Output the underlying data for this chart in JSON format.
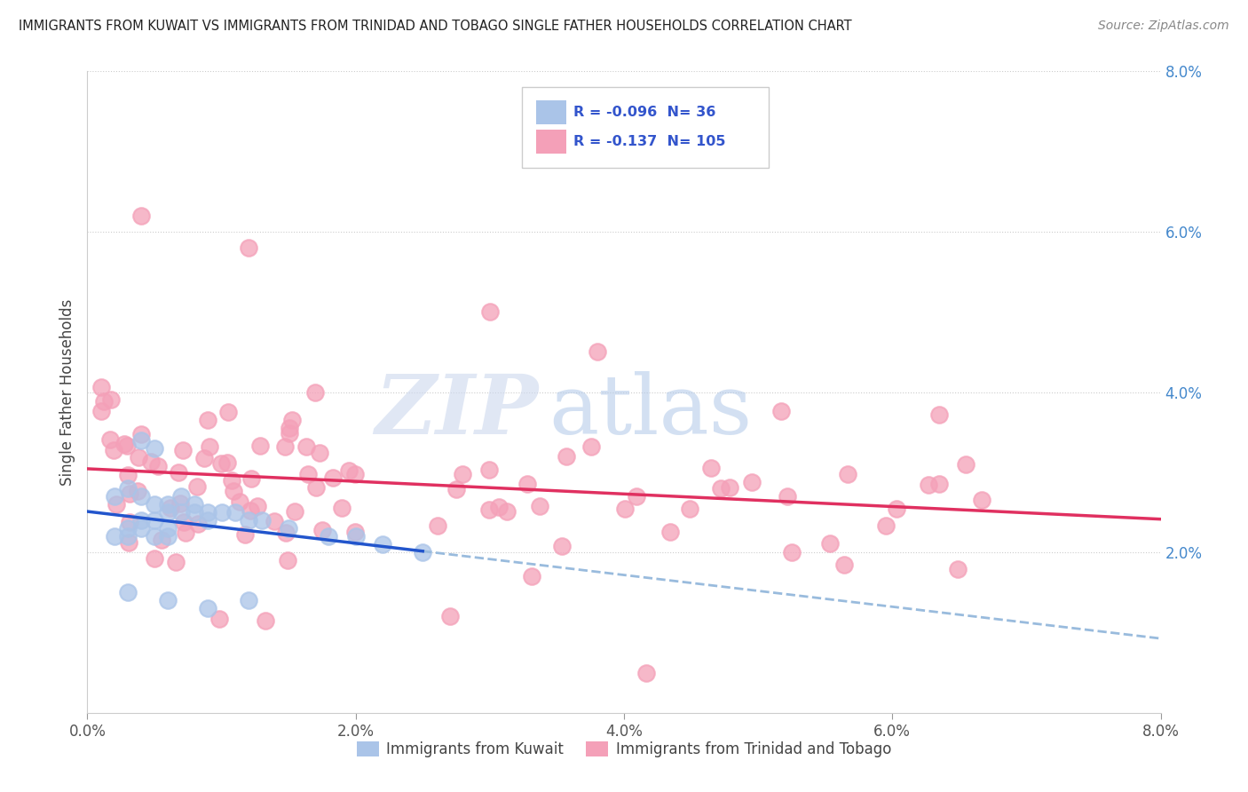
{
  "title": "IMMIGRANTS FROM KUWAIT VS IMMIGRANTS FROM TRINIDAD AND TOBAGO SINGLE FATHER HOUSEHOLDS CORRELATION CHART",
  "source": "Source: ZipAtlas.com",
  "ylabel": "Single Father Households",
  "legend_label1": "Immigrants from Kuwait",
  "legend_label2": "Immigrants from Trinidad and Tobago",
  "R1": -0.096,
  "N1": 36,
  "R2": -0.137,
  "N2": 105,
  "color1": "#aac4e8",
  "color2": "#f4a0b8",
  "line_color1": "#2255cc",
  "line_color2": "#e03060",
  "dash_color": "#99bbdd",
  "xlim": [
    0.0,
    0.08
  ],
  "ylim": [
    0.0,
    0.08
  ],
  "right_yticks": [
    0.02,
    0.04,
    0.06,
    0.08
  ],
  "right_yticklabels": [
    "2.0%",
    "4.0%",
    "6.0%",
    "8.0%"
  ],
  "xtick_labels": [
    "0.0%",
    "2.0%",
    "4.0%",
    "6.0%",
    "8.0%"
  ],
  "xtick_values": [
    0.0,
    0.02,
    0.04,
    0.06,
    0.08
  ],
  "watermark_zip": "ZIP",
  "watermark_atlas": "atlas",
  "background_color": "#ffffff"
}
